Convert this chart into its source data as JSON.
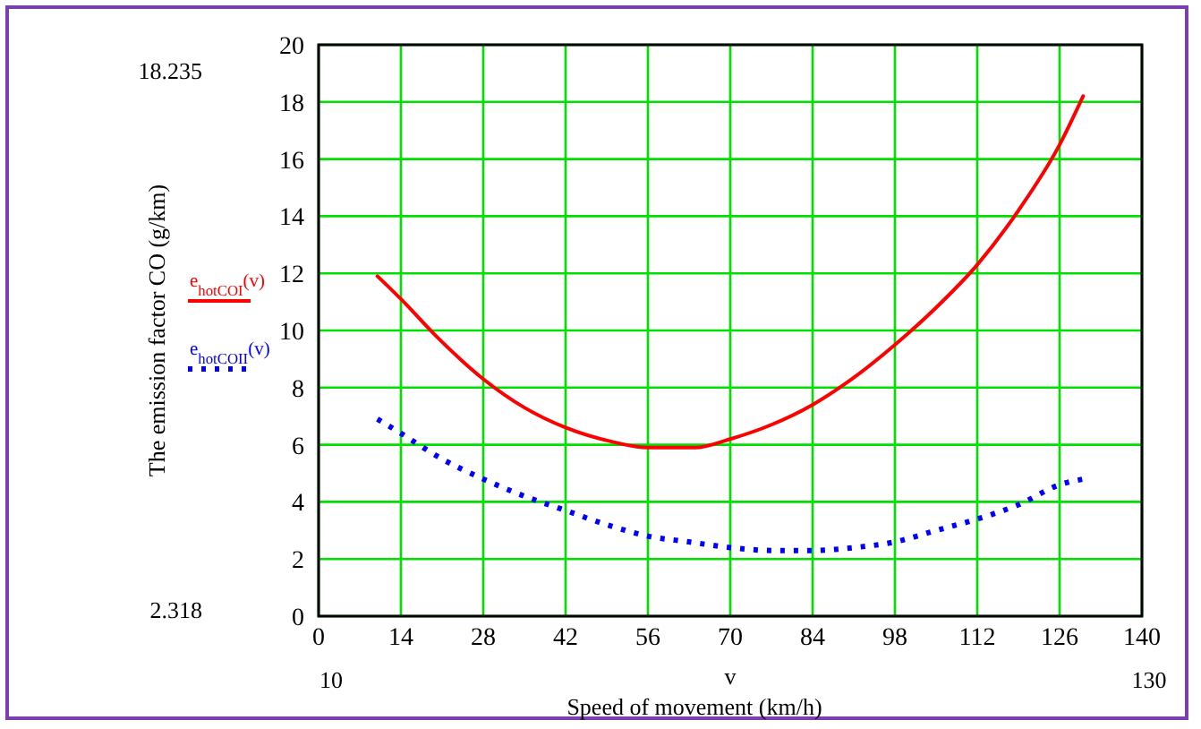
{
  "chart_data": {
    "type": "line",
    "xlabel": "Speed of movement (km/h)",
    "ylabel": "The emission factor  CO (g/km)",
    "xlim": [
      0,
      140
    ],
    "xticks": [
      0,
      14,
      28,
      42,
      56,
      70,
      84,
      98,
      112,
      126,
      140
    ],
    "ylim": [
      0,
      20
    ],
    "yticks": [
      0,
      2,
      4,
      6,
      8,
      10,
      12,
      14,
      16,
      18,
      20
    ],
    "grid": true,
    "legend": "left",
    "annotations": [
      "18.235",
      "2.318",
      "10",
      "130",
      "v"
    ],
    "series": [
      {
        "name": "e$_{hotCOI}$(v)",
        "color": "#ff0000",
        "line_style": "solid",
        "x": [
          10,
          14,
          20,
          28,
          35,
          42,
          50,
          56,
          64,
          70,
          77,
          84,
          90,
          98,
          105,
          112,
          119,
          126,
          130
        ],
        "values": [
          11.9,
          11.1,
          9.8,
          8.3,
          7.3,
          6.6,
          6.1,
          5.9,
          5.9,
          6.2,
          6.7,
          7.4,
          8.2,
          9.5,
          10.8,
          12.3,
          14.2,
          16.5,
          18.2
        ]
      },
      {
        "name": "e$_{hotCOII}$(v)",
        "color": "#0000ff",
        "line_style": "dotted",
        "x": [
          10,
          14,
          21,
          28,
          35,
          42,
          49,
          56,
          63,
          70,
          77,
          84,
          91,
          98,
          105,
          112,
          119,
          126,
          130
        ],
        "values": [
          6.9,
          6.4,
          5.5,
          4.8,
          4.2,
          3.7,
          3.2,
          2.8,
          2.6,
          2.4,
          2.3,
          2.3,
          2.4,
          2.6,
          3.0,
          3.4,
          3.9,
          4.6,
          4.8
        ]
      }
    ]
  }
}
